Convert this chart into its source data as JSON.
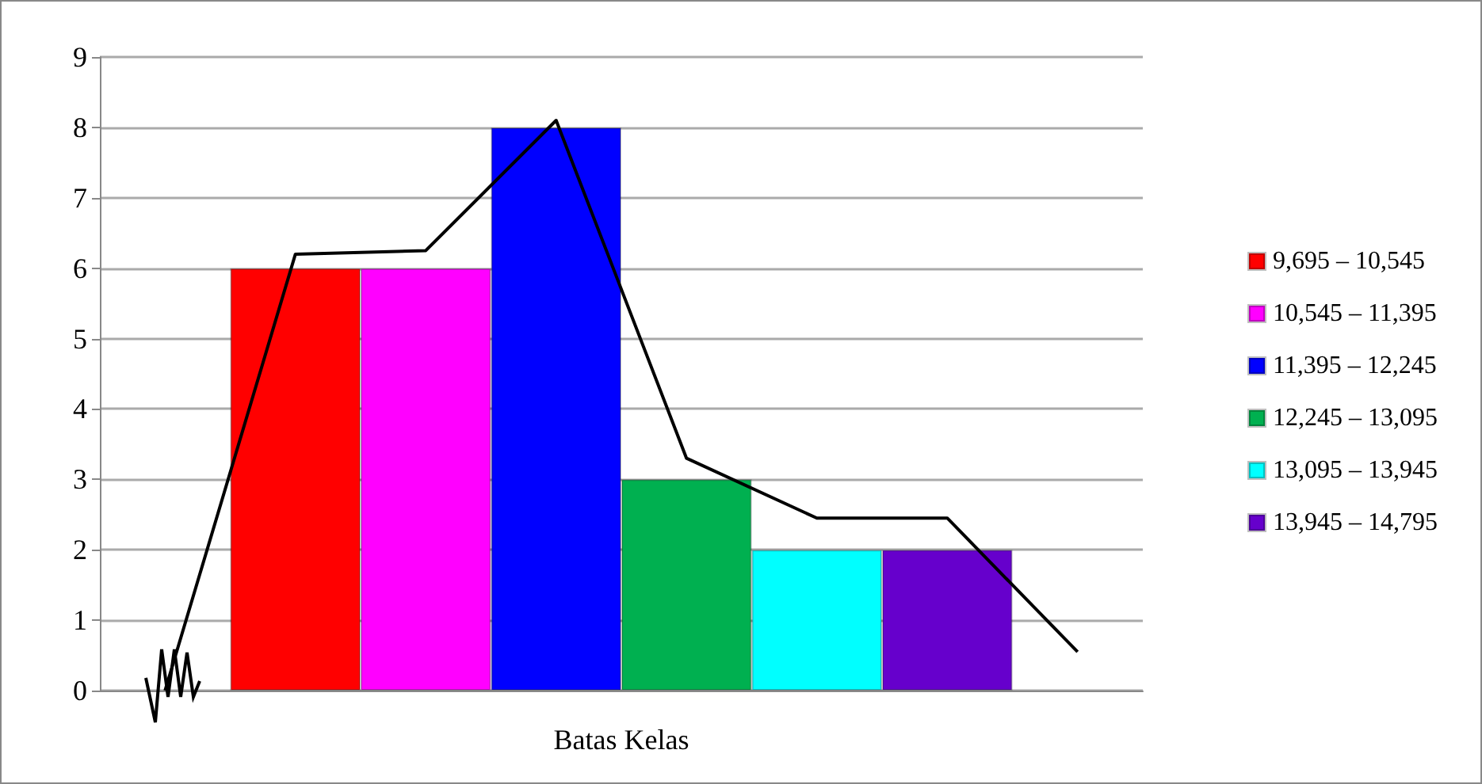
{
  "chart_data": {
    "type": "bar",
    "xlabel": "Batas Kelas",
    "stacked": true,
    "categories": [
      null,
      null,
      null,
      null,
      null,
      null,
      null,
      null
    ],
    "series": [
      {
        "name": "9,695 – 10,545",
        "color": "#ff0000",
        "values": [
          null,
          6,
          null,
          null,
          null,
          null,
          null,
          null
        ]
      },
      {
        "name": "10,545 – 11,395",
        "color": "#ff00ff",
        "values": [
          null,
          null,
          6,
          null,
          null,
          null,
          null,
          null
        ]
      },
      {
        "name": "11,395 – 12,245",
        "color": "#0000ff",
        "values": [
          null,
          null,
          null,
          8,
          null,
          null,
          null,
          null
        ]
      },
      {
        "name": "12,245 – 13,095",
        "color": "#00b050",
        "values": [
          null,
          null,
          null,
          null,
          3,
          null,
          null,
          null
        ]
      },
      {
        "name": "13,095 – 13,945",
        "color": "#00ffff",
        "values": [
          null,
          null,
          null,
          null,
          null,
          2,
          null,
          null
        ]
      },
      {
        "name": "13,945 – 14,795",
        "color": "#6600cc",
        "values": [
          null,
          null,
          null,
          null,
          null,
          null,
          2,
          null
        ]
      },
      {
        "type": "line",
        "color": "#000000",
        "values": [
          0,
          6.2,
          6.25,
          8.1,
          3.3,
          2.45,
          2.45,
          0.55
        ]
      }
    ],
    "ylim": [
      0,
      9
    ],
    "yticks": [
      0,
      1,
      2,
      3,
      4,
      5,
      6,
      7,
      8,
      9
    ],
    "grid": "y",
    "legend": "right",
    "tick_labels": "y"
  }
}
